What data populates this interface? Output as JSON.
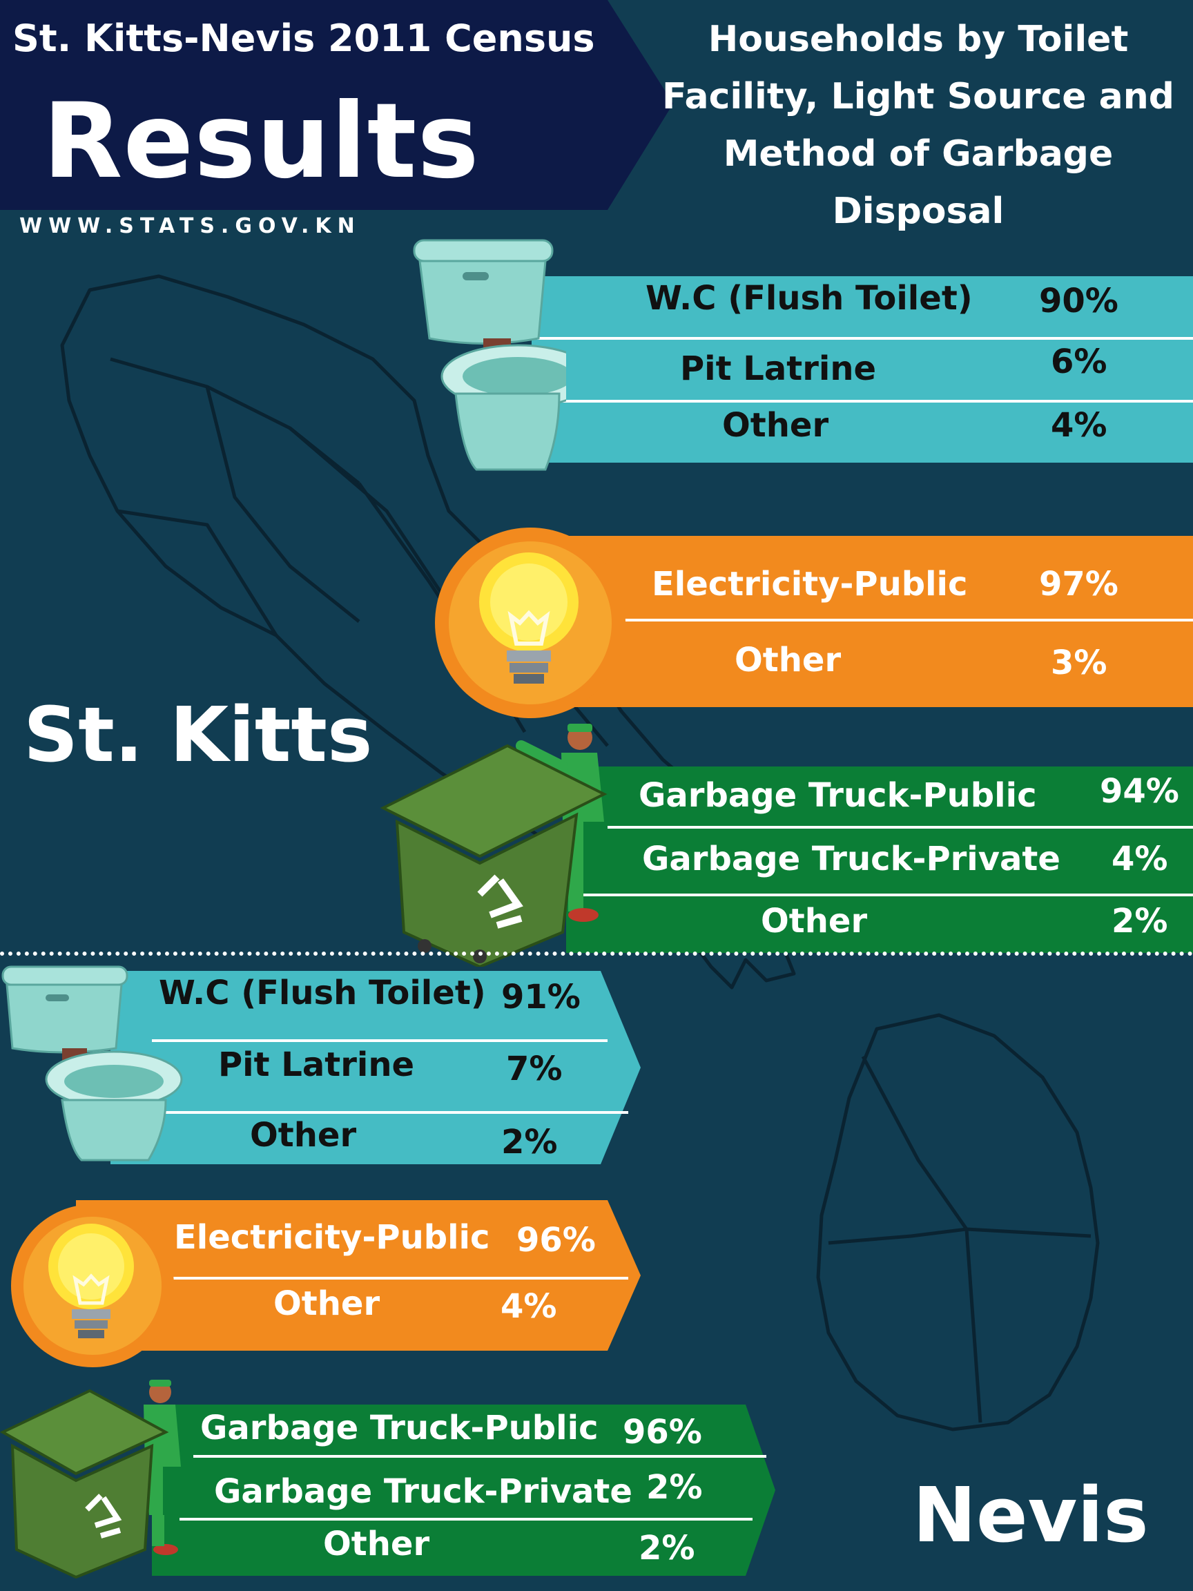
{
  "header": {
    "title_top": "St. Kitts-Nevis 2011 Census",
    "title_main": "Results",
    "website": "WWW.STATS.GOV.KN",
    "subtitle": "Households by Toilet Facility, Light Source and Method of Garbage Disposal"
  },
  "st_kitts": {
    "name": "St. Kitts",
    "toilet": [
      {
        "label": "W.C (Flush Toilet)",
        "value": "90%"
      },
      {
        "label": "Pit Latrine",
        "value": "6%"
      },
      {
        "label": "Other",
        "value": "4%"
      }
    ],
    "light": [
      {
        "label": "Electricity-Public",
        "value": "97%"
      },
      {
        "label": "Other",
        "value": "3%"
      }
    ],
    "garbage": [
      {
        "label": "Garbage Truck-Public",
        "value": "94%"
      },
      {
        "label": "Garbage Truck-Private",
        "value": "4%"
      },
      {
        "label": "Other",
        "value": "2%"
      }
    ]
  },
  "nevis": {
    "name": "Nevis",
    "toilet": [
      {
        "label": "W.C (Flush Toilet)",
        "value": "91%"
      },
      {
        "label": "Pit Latrine",
        "value": "7%"
      },
      {
        "label": "Other",
        "value": "2%"
      }
    ],
    "light": [
      {
        "label": "Electricity-Public",
        "value": "96%"
      },
      {
        "label": "Other",
        "value": "4%"
      }
    ],
    "garbage": [
      {
        "label": "Garbage Truck-Public",
        "value": "96%"
      },
      {
        "label": "Garbage Truck-Private",
        "value": "2%"
      },
      {
        "label": "Other",
        "value": "2%"
      }
    ]
  },
  "colors": {
    "background": "#113d52",
    "banner": "#0d1a47",
    "toilet_band": "#45bcc4",
    "light_band": "#f28a1e",
    "garbage_band": "#0b7e36",
    "text_dark": "#111111",
    "text_light": "#ffffff"
  },
  "icons": [
    "toilet-icon",
    "light-bulb-icon",
    "garbage-bin-icon",
    "worker-icon",
    "recycle-icon"
  ]
}
